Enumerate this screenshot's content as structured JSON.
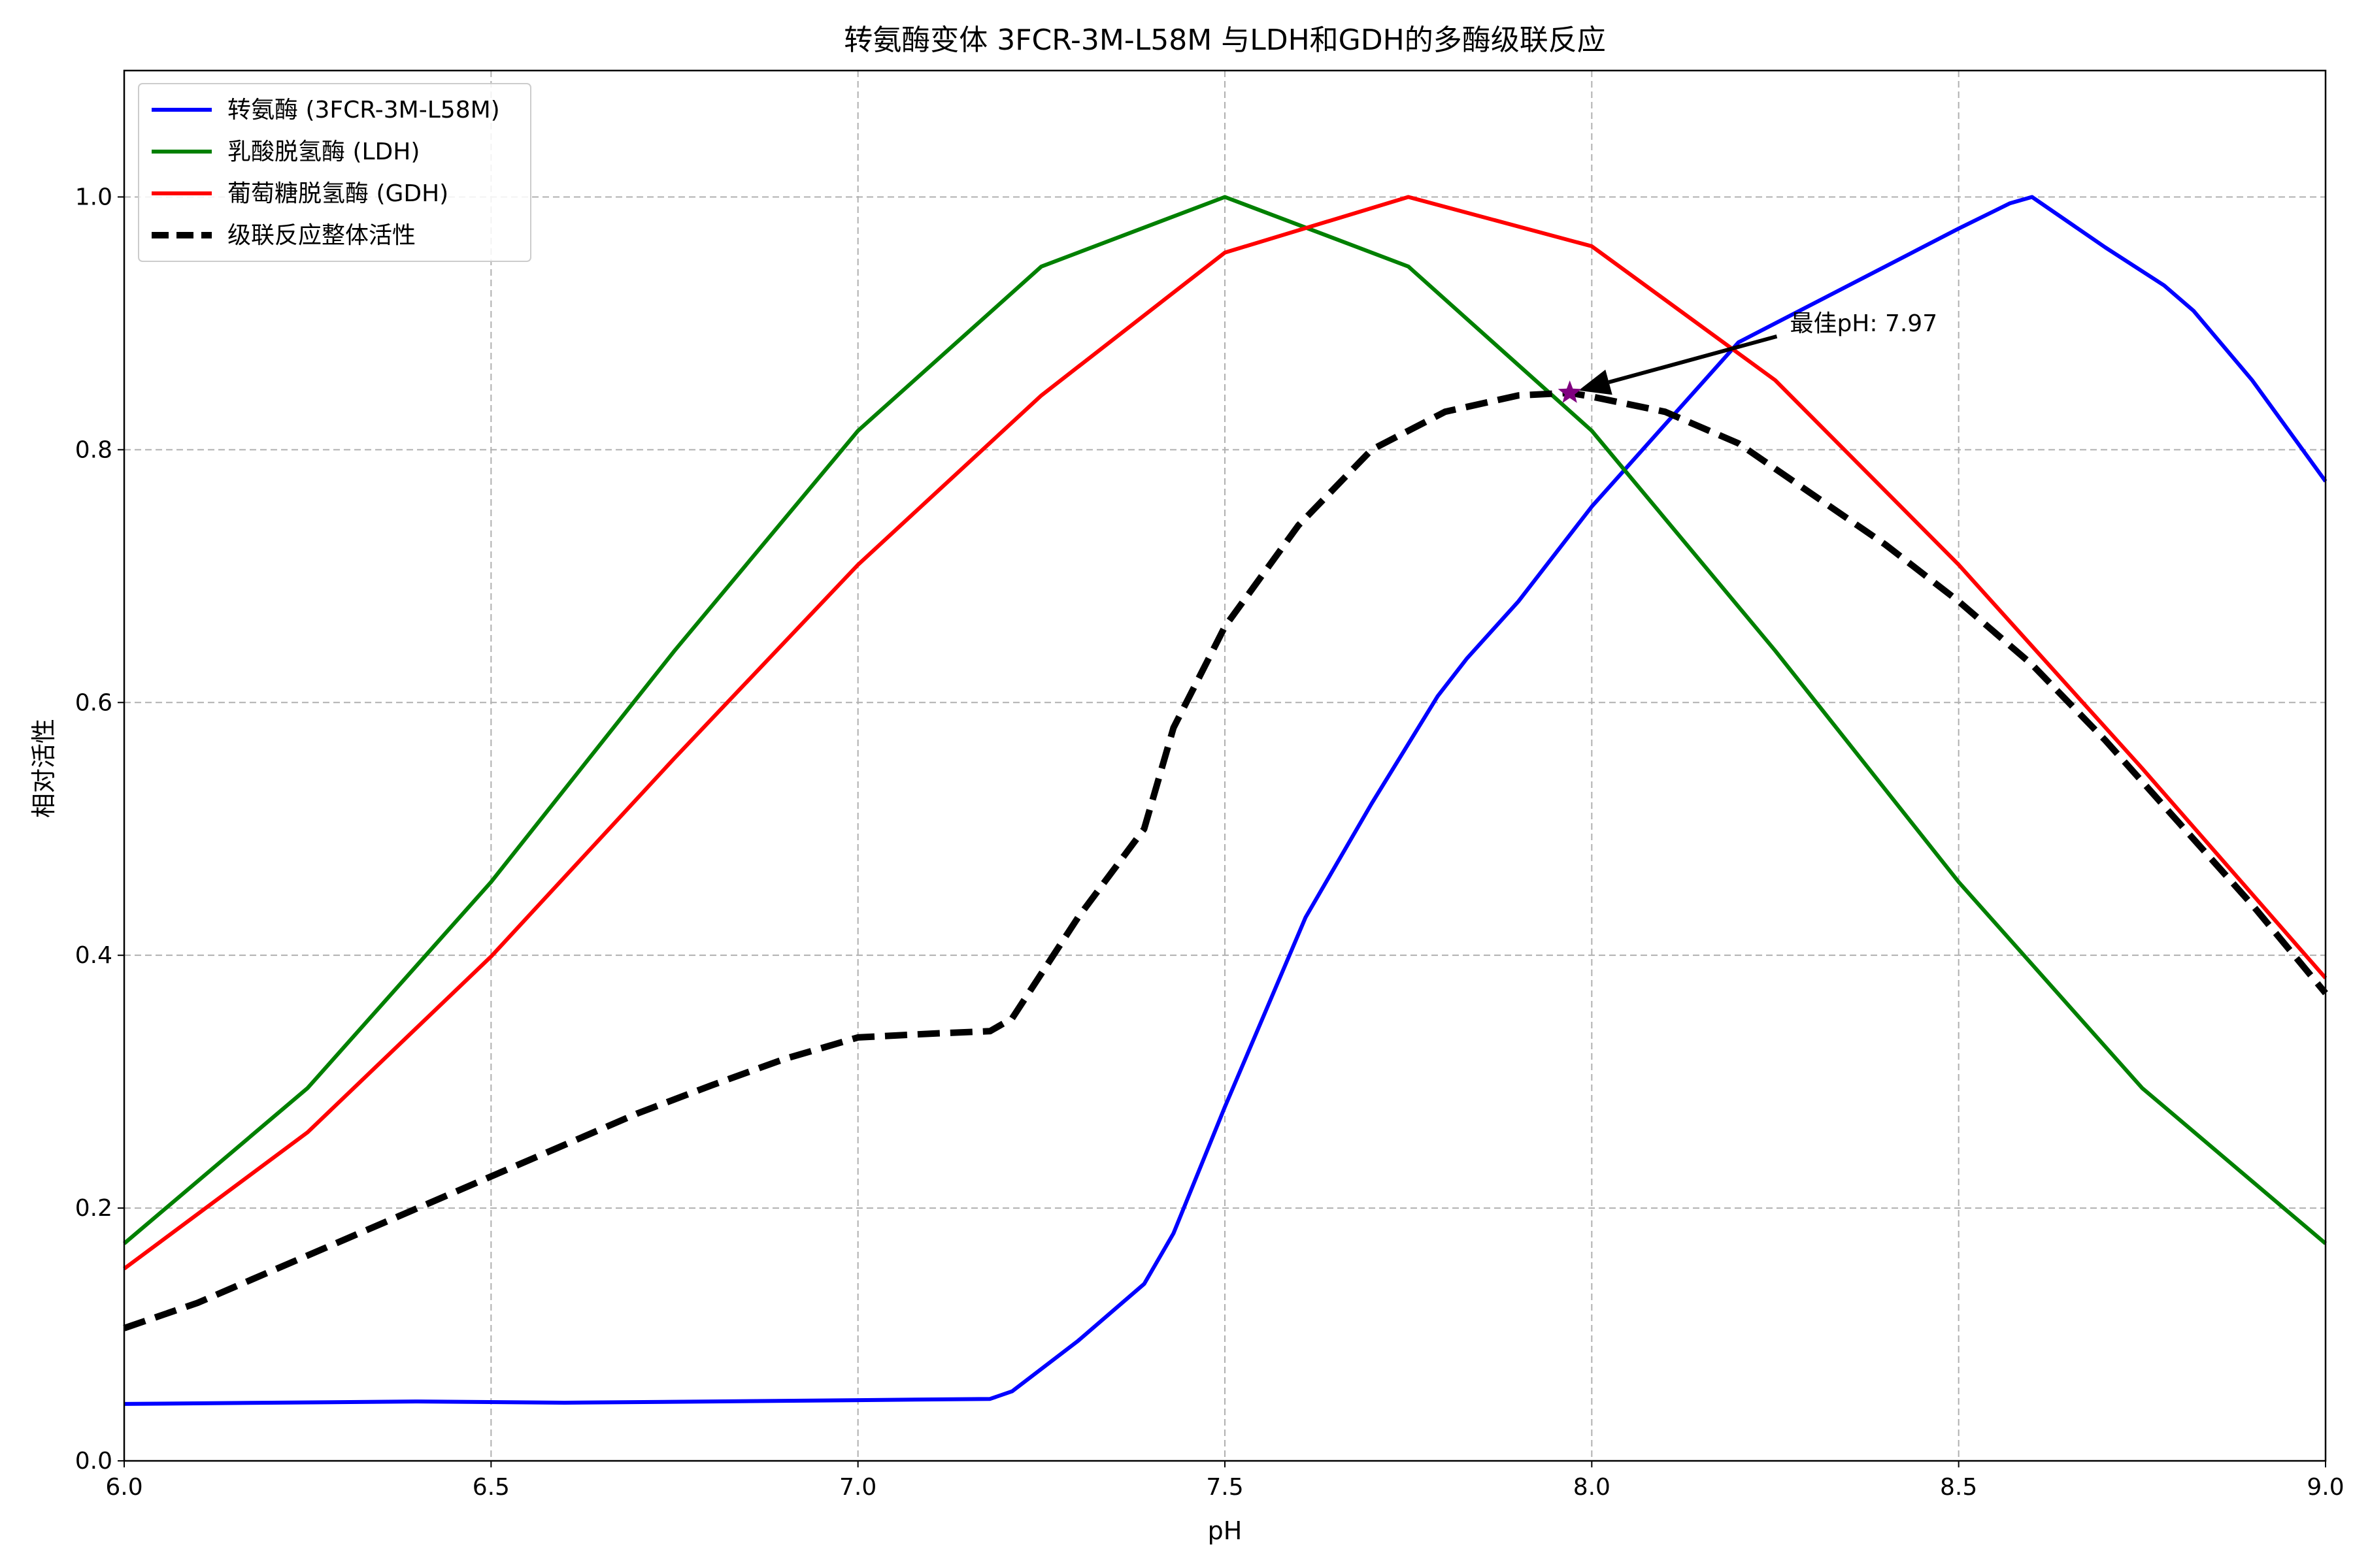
{
  "chart_data": {
    "type": "line",
    "title": "转氨酶变体 3FCR-3M-L58M 与LDH和GDH的多酶级联反应",
    "xlabel": "pH",
    "ylabel": "相对活性",
    "xlim": [
      6.0,
      9.0
    ],
    "ylim": [
      0.0,
      1.1
    ],
    "xticks": [
      "6.0",
      "6.5",
      "7.0",
      "7.5",
      "8.0",
      "8.5",
      "9.0"
    ],
    "yticks": [
      "0.0",
      "0.2",
      "0.4",
      "0.6",
      "0.8",
      "1.0"
    ],
    "grid": true,
    "legend_position": "upper-left",
    "series": [
      {
        "name": "转氨酶 (3FCR-3M-L58M)",
        "color": "#0000ff",
        "style": "solid",
        "x": [
          6.0,
          6.2,
          6.4,
          6.6,
          6.8,
          7.0,
          7.18,
          7.21,
          7.3,
          7.39,
          7.43,
          7.5,
          7.61,
          7.7,
          7.79,
          7.83,
          7.9,
          8.0,
          8.2,
          8.3,
          8.4,
          8.5,
          8.57,
          8.6,
          8.7,
          8.78,
          8.82,
          8.9,
          9.0
        ],
        "y": [
          0.045,
          0.046,
          0.047,
          0.046,
          0.047,
          0.048,
          0.049,
          0.055,
          0.095,
          0.14,
          0.18,
          0.28,
          0.43,
          0.52,
          0.605,
          0.635,
          0.68,
          0.755,
          0.885,
          0.915,
          0.945,
          0.975,
          0.995,
          1.0,
          0.96,
          0.93,
          0.91,
          0.855,
          0.775
        ]
      },
      {
        "name": "乳酸脱氢酶 (LDH)",
        "color": "#008000",
        "style": "solid",
        "x": [
          6.0,
          6.25,
          6.5,
          6.75,
          7.0,
          7.25,
          7.5,
          7.75,
          8.0,
          8.25,
          8.5,
          8.75,
          9.0
        ],
        "y": [
          0.172,
          0.295,
          0.458,
          0.641,
          0.815,
          0.945,
          1.0,
          0.945,
          0.815,
          0.641,
          0.458,
          0.295,
          0.172
        ]
      },
      {
        "name": "葡萄糖脱氢酶 (GDH)",
        "color": "#ff0000",
        "style": "solid",
        "x": [
          6.0,
          6.25,
          6.5,
          6.75,
          7.0,
          7.25,
          7.5,
          7.75,
          8.0,
          8.25,
          8.5,
          8.75,
          9.0
        ],
        "y": [
          0.152,
          0.26,
          0.399,
          0.556,
          0.709,
          0.843,
          0.956,
          1.0,
          0.961,
          0.855,
          0.709,
          0.548,
          0.382
        ]
      },
      {
        "name": "级联反应整体活性",
        "color": "#000000",
        "style": "dashed",
        "x": [
          6.0,
          6.1,
          6.2,
          6.3,
          6.4,
          6.5,
          6.6,
          6.7,
          6.8,
          6.9,
          7.0,
          7.1,
          7.18,
          7.21,
          7.3,
          7.39,
          7.43,
          7.5,
          7.6,
          7.7,
          7.8,
          7.9,
          7.97,
          8.0,
          8.1,
          8.2,
          8.3,
          8.4,
          8.5,
          8.6,
          8.7,
          8.8,
          8.9,
          9.0
        ],
        "y": [
          0.105,
          0.125,
          0.15,
          0.175,
          0.2,
          0.225,
          0.25,
          0.275,
          0.297,
          0.318,
          0.335,
          0.338,
          0.34,
          0.35,
          0.43,
          0.5,
          0.58,
          0.66,
          0.74,
          0.8,
          0.83,
          0.843,
          0.845,
          0.842,
          0.83,
          0.805,
          0.765,
          0.725,
          0.68,
          0.63,
          0.57,
          0.505,
          0.44,
          0.37
        ]
      }
    ],
    "annotation": {
      "text": "最佳pH: 7.97",
      "x": 7.97,
      "y": 0.845,
      "text_x": 8.27,
      "text_y": 0.9,
      "marker": "star",
      "marker_color": "#800080"
    }
  }
}
